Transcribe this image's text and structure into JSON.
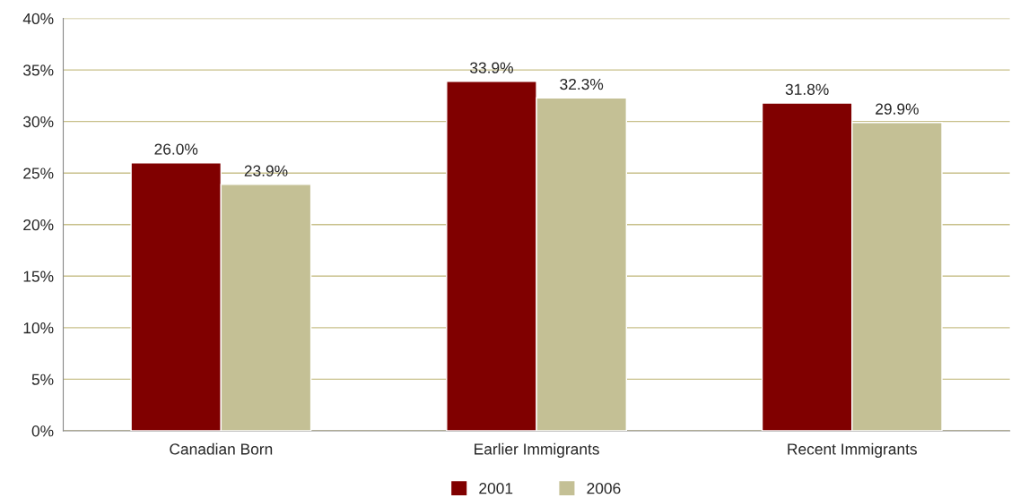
{
  "chart_data": {
    "type": "bar",
    "categories": [
      "Canadian Born",
      "Earlier Immigrants",
      "Recent Immigrants"
    ],
    "series": [
      {
        "name": "2001",
        "color": "#800000",
        "values": [
          26.0,
          33.9,
          31.8
        ],
        "value_labels": [
          "26.0%",
          "33.9%",
          "31.8%"
        ]
      },
      {
        "name": "2006",
        "color": "#c4c095",
        "values": [
          23.9,
          32.3,
          29.9
        ],
        "value_labels": [
          "23.9%",
          "32.3%",
          "29.9%"
        ]
      }
    ],
    "ylim": [
      0,
      40
    ],
    "yticks": [
      {
        "value": 0,
        "label": "0%"
      },
      {
        "value": 5,
        "label": "5%"
      },
      {
        "value": 10,
        "label": "10%"
      },
      {
        "value": 15,
        "label": "15%"
      },
      {
        "value": 20,
        "label": "20%"
      },
      {
        "value": 25,
        "label": "25%"
      },
      {
        "value": 30,
        "label": "30%"
      },
      {
        "value": 35,
        "label": "35%"
      },
      {
        "value": 40,
        "label": "40%"
      }
    ],
    "grid": "y",
    "legend": "bottom"
  }
}
